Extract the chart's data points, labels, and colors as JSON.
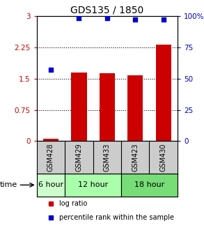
{
  "title": "GDS135 / 1850",
  "categories": [
    "GSM428",
    "GSM429",
    "GSM433",
    "GSM423",
    "GSM430"
  ],
  "log_ratio": [
    0.05,
    1.65,
    1.62,
    1.58,
    2.32
  ],
  "percentile_rank": [
    57,
    98,
    98,
    97,
    97
  ],
  "left_yticks": [
    0,
    0.75,
    1.5,
    2.25,
    3
  ],
  "right_yticks": [
    0,
    25,
    50,
    75,
    100
  ],
  "right_yticklabels": [
    "0",
    "25",
    "50",
    "75",
    "100%"
  ],
  "ylim": [
    0,
    3
  ],
  "bar_color": "#cc0000",
  "scatter_color": "#0000cc",
  "time_groups": [
    {
      "label": "6 hour",
      "start": 0,
      "end": 1
    },
    {
      "label": "12 hour",
      "start": 1,
      "end": 3
    },
    {
      "label": "18 hour",
      "start": 3,
      "end": 5
    }
  ],
  "time_colors": [
    "#ccffcc",
    "#aaffaa",
    "#77dd77"
  ],
  "time_label": "time",
  "legend_log_ratio": "log ratio",
  "legend_percentile": "percentile rank within the sample",
  "background_main": "#ffffff",
  "background_sample": "#cccccc"
}
